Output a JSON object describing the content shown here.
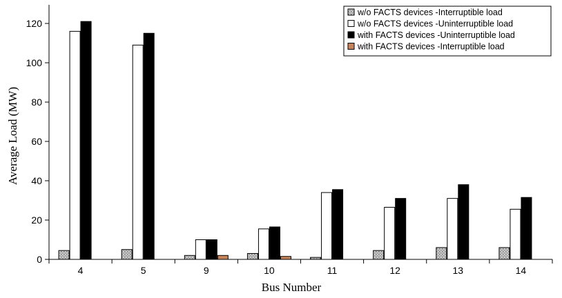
{
  "chart_data": {
    "type": "bar",
    "xlabel": "Bus Number",
    "ylabel": "Average Load (MW)",
    "ylim": [
      0,
      130
    ],
    "yticks": [
      "0",
      "20",
      "40",
      "60",
      "80",
      "100",
      "120"
    ],
    "categories": [
      "4",
      "5",
      "9",
      "10",
      "11",
      "12",
      "13",
      "14"
    ],
    "legend_placement": "top-right",
    "series": [
      {
        "name": "w/o FACTS devices -Interruptible load",
        "color": "#b3b3b3",
        "pattern": "speckled-gray",
        "values": [
          4.5,
          5,
          2,
          3,
          1,
          4.5,
          6,
          6
        ]
      },
      {
        "name": "w/o FACTS devices -Uninterruptible load",
        "color": "#ffffff",
        "values": [
          116,
          109,
          10,
          15.5,
          34,
          26.5,
          31,
          25.5
        ]
      },
      {
        "name": "with FACTS devices -Uninterruptible load",
        "color": "#000000",
        "values": [
          121,
          115,
          10,
          16.5,
          35.5,
          31,
          38,
          31.5
        ]
      },
      {
        "name": "with FACTS devices -Interruptible load",
        "color": "#c8845a",
        "values": [
          0,
          0,
          2,
          1.5,
          0,
          0,
          0,
          0
        ]
      }
    ]
  }
}
